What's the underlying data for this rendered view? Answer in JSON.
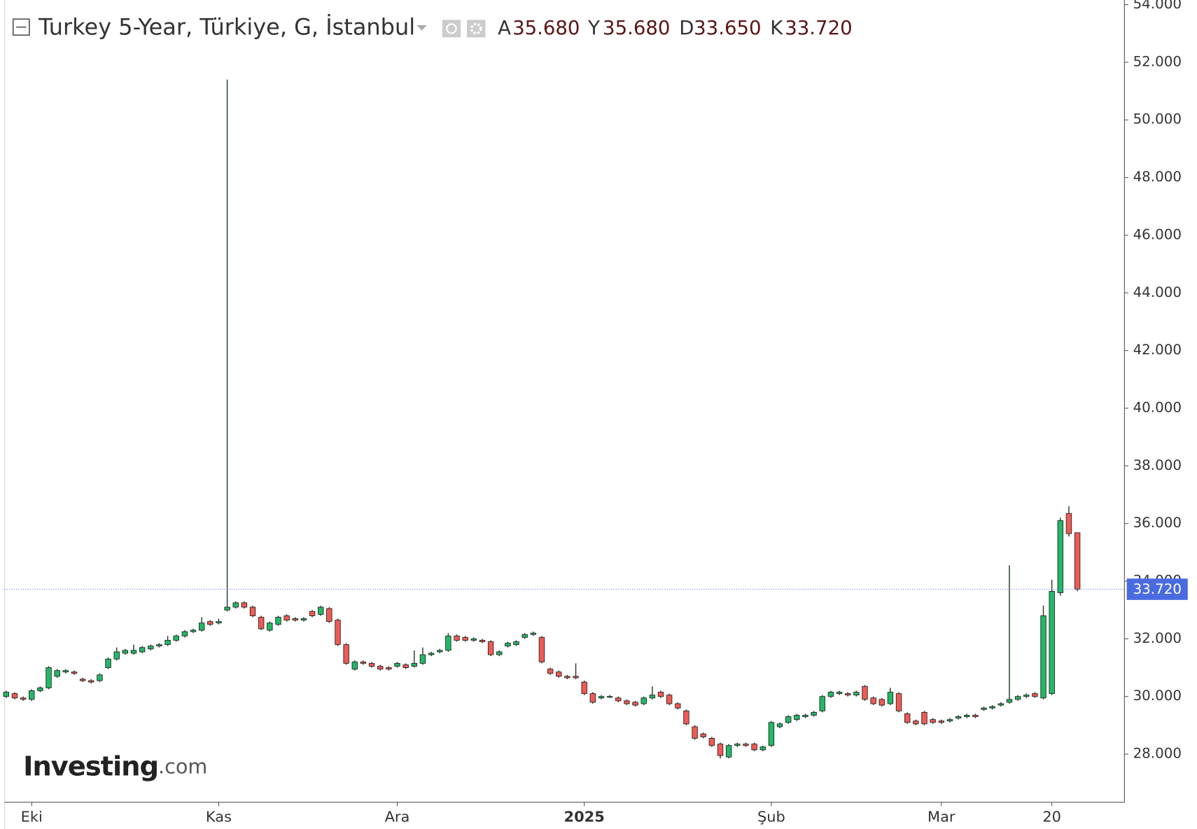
{
  "header": {
    "title": "Turkey 5-Year, Türkiye, G, İstanbul",
    "ohlc": [
      {
        "letter": "A",
        "value": "35.680"
      },
      {
        "letter": "Y",
        "value": "35.680"
      },
      {
        "letter": "D",
        "value": "33.650"
      },
      {
        "letter": "K",
        "value": "33.720"
      }
    ]
  },
  "logo": {
    "main": "Investing",
    "suffix": ".com"
  },
  "chart_data": {
    "type": "candlestick",
    "categories": [
      null,
      null,
      null,
      "Eki",
      null,
      null,
      null,
      null,
      null,
      null,
      null,
      null,
      null,
      null,
      null,
      null,
      null,
      null,
      null,
      null,
      null,
      null,
      null,
      null,
      null,
      "Kas",
      null,
      null,
      null,
      null,
      null,
      null,
      null,
      null,
      null,
      null,
      null,
      null,
      null,
      null,
      null,
      null,
      null,
      null,
      null,
      null,
      "Ara",
      null,
      null,
      null,
      null,
      null,
      null,
      null,
      null,
      null,
      null,
      null,
      null,
      null,
      null,
      null,
      null,
      null,
      null,
      null,
      null,
      null,
      "2025",
      null,
      null,
      null,
      null,
      null,
      null,
      null,
      null,
      null,
      null,
      null,
      null,
      null,
      null,
      null,
      null,
      null,
      null,
      null,
      null,
      null,
      "Şub",
      null,
      null,
      null,
      null,
      null,
      null,
      null,
      null,
      null,
      null,
      null,
      null,
      null,
      null,
      null,
      null,
      null,
      null,
      null,
      "Mar",
      null,
      null,
      null,
      null,
      null,
      null,
      null,
      null,
      null,
      null,
      null,
      null,
      "20",
      null,
      null,
      null
    ],
    "open": [
      30.0,
      30.1,
      29.95,
      29.9,
      30.2,
      30.3,
      30.7,
      30.85,
      30.85,
      30.6,
      30.55,
      30.55,
      31.0,
      31.3,
      31.5,
      31.5,
      31.55,
      31.65,
      31.75,
      31.8,
      31.95,
      32.1,
      32.25,
      32.3,
      32.6,
      32.55,
      33.0,
      33.1,
      33.25,
      33.1,
      32.75,
      32.3,
      32.5,
      32.8,
      32.7,
      32.65,
      32.95,
      32.85,
      33.05,
      32.65,
      31.8,
      30.95,
      31.2,
      31.15,
      31.05,
      31.0,
      31.05,
      31.1,
      31.05,
      31.15,
      31.45,
      31.55,
      31.6,
      32.1,
      32.05,
      31.95,
      31.95,
      31.9,
      31.45,
      31.75,
      31.8,
      32.05,
      32.15,
      32.05,
      30.95,
      30.85,
      30.7,
      30.7,
      30.5,
      30.1,
      29.95,
      30.0,
      29.95,
      29.85,
      29.8,
      29.75,
      29.95,
      30.15,
      30.05,
      29.75,
      29.5,
      28.95,
      28.7,
      28.55,
      28.35,
      27.9,
      28.3,
      28.35,
      28.35,
      28.15,
      28.3,
      28.95,
      29.1,
      29.2,
      29.3,
      29.35,
      29.5,
      30.0,
      30.1,
      30.1,
      30.05,
      30.35,
      29.95,
      29.9,
      29.75,
      30.1,
      29.4,
      29.15,
      29.45,
      29.2,
      29.15,
      29.15,
      29.25,
      29.3,
      29.35,
      29.55,
      29.6,
      29.7,
      29.8,
      29.9,
      30.0,
      30.1,
      29.95,
      30.1,
      33.6,
      36.35,
      35.68
    ],
    "high": [
      30.2,
      30.15,
      30.0,
      30.25,
      30.35,
      31.05,
      30.95,
      30.95,
      30.9,
      30.65,
      30.6,
      30.8,
      31.35,
      31.7,
      31.65,
      31.8,
      31.75,
      31.8,
      31.85,
      32.1,
      32.15,
      32.3,
      32.35,
      32.75,
      32.65,
      32.7,
      51.4,
      33.3,
      33.3,
      33.15,
      32.8,
      32.6,
      32.8,
      32.85,
      32.75,
      32.75,
      33.0,
      33.15,
      33.1,
      32.7,
      31.85,
      31.25,
      31.25,
      31.2,
      31.1,
      31.05,
      31.2,
      31.15,
      31.6,
      31.7,
      31.55,
      31.65,
      32.2,
      32.15,
      32.1,
      32.05,
      32.0,
      31.95,
      31.6,
      31.9,
      31.95,
      32.2,
      32.25,
      32.1,
      31.0,
      30.9,
      30.75,
      31.15,
      30.55,
      30.15,
      30.05,
      30.05,
      30.0,
      29.9,
      29.85,
      30.0,
      30.35,
      30.2,
      30.1,
      29.8,
      29.55,
      29.0,
      28.75,
      28.6,
      28.4,
      28.35,
      28.4,
      28.4,
      28.4,
      28.3,
      29.15,
      29.1,
      29.35,
      29.4,
      29.4,
      29.5,
      30.05,
      30.2,
      30.2,
      30.15,
      30.2,
      30.4,
      30.0,
      29.95,
      30.3,
      30.15,
      29.45,
      29.2,
      29.5,
      29.25,
      29.2,
      29.25,
      29.35,
      29.4,
      29.4,
      29.65,
      29.7,
      29.8,
      34.55,
      30.05,
      30.1,
      30.15,
      33.15,
      34.05,
      36.2,
      36.6,
      35.68
    ],
    "low": [
      29.95,
      29.9,
      29.85,
      29.85,
      30.15,
      30.25,
      30.65,
      30.8,
      30.75,
      30.5,
      30.45,
      30.5,
      30.95,
      31.25,
      31.45,
      31.45,
      31.5,
      31.6,
      31.7,
      31.75,
      31.9,
      32.05,
      32.2,
      32.25,
      32.45,
      32.5,
      32.95,
      33.05,
      33.05,
      32.75,
      32.3,
      32.25,
      32.45,
      32.6,
      32.6,
      32.6,
      32.75,
      32.8,
      32.55,
      31.75,
      31.1,
      30.9,
      31.1,
      31.0,
      30.9,
      30.9,
      31.0,
      30.95,
      31.0,
      31.1,
      31.4,
      31.5,
      31.55,
      31.9,
      31.9,
      31.9,
      31.85,
      31.4,
      31.4,
      31.7,
      31.75,
      32.0,
      32.1,
      31.15,
      30.75,
      30.65,
      30.6,
      30.6,
      30.05,
      29.75,
      29.9,
      29.95,
      29.8,
      29.7,
      29.65,
      29.7,
      29.9,
      29.95,
      29.7,
      29.55,
      29.0,
      28.5,
      28.55,
      28.25,
      27.85,
      27.85,
      28.25,
      28.25,
      28.1,
      28.1,
      28.25,
      28.9,
      29.05,
      29.15,
      29.25,
      29.3,
      29.45,
      29.95,
      30.05,
      30.0,
      30.0,
      29.85,
      29.7,
      29.65,
      29.7,
      29.45,
      29.05,
      29.0,
      29.0,
      29.05,
      29.05,
      29.1,
      29.2,
      29.25,
      29.25,
      29.5,
      29.55,
      29.65,
      29.75,
      29.85,
      29.95,
      29.95,
      29.9,
      30.05,
      33.5,
      35.55,
      33.65
    ],
    "close": [
      30.15,
      29.95,
      29.9,
      30.2,
      30.3,
      31.0,
      30.9,
      30.9,
      30.8,
      30.55,
      30.5,
      30.75,
      31.3,
      31.55,
      31.6,
      31.6,
      31.7,
      31.75,
      31.8,
      31.95,
      32.1,
      32.25,
      32.3,
      32.55,
      32.5,
      32.6,
      33.1,
      33.25,
      33.1,
      32.8,
      32.35,
      32.55,
      32.75,
      32.65,
      32.65,
      32.7,
      32.8,
      33.1,
      32.6,
      31.8,
      31.15,
      31.2,
      31.15,
      31.05,
      30.95,
      30.95,
      31.15,
      31.0,
      31.15,
      31.45,
      31.5,
      31.6,
      32.1,
      31.95,
      31.95,
      32.0,
      31.9,
      31.45,
      31.55,
      31.85,
      31.9,
      32.15,
      32.2,
      31.2,
      30.8,
      30.7,
      30.65,
      30.65,
      30.1,
      29.8,
      30.0,
      30.0,
      29.85,
      29.75,
      29.7,
      29.95,
      30.05,
      30.0,
      29.75,
      29.6,
      29.05,
      28.55,
      28.6,
      28.3,
      27.95,
      28.3,
      28.35,
      28.3,
      28.15,
      28.25,
      29.1,
      29.05,
      29.3,
      29.35,
      29.35,
      29.45,
      30.0,
      30.15,
      30.15,
      30.05,
      30.15,
      29.9,
      29.75,
      29.7,
      30.15,
      29.5,
      29.1,
      29.05,
      29.05,
      29.1,
      29.1,
      29.2,
      29.3,
      29.35,
      29.3,
      29.6,
      29.65,
      29.75,
      29.9,
      30.0,
      30.05,
      30.0,
      32.8,
      33.65,
      36.1,
      35.65,
      33.72
    ],
    "up_color": "#22b866",
    "down_color": "#f05a55",
    "wick_color": "#1f3d24",
    "ylim": [
      26.33,
      54.16
    ],
    "yticks": [
      {
        "value": 28,
        "label": "28.000"
      },
      {
        "value": 30,
        "label": "30.000"
      },
      {
        "value": 32,
        "label": "32.000"
      },
      {
        "value": 34,
        "label": "34.000"
      },
      {
        "value": 36,
        "label": "36.000"
      },
      {
        "value": 38,
        "label": "38.000"
      },
      {
        "value": 40,
        "label": "40.000"
      },
      {
        "value": 42,
        "label": "42.000"
      },
      {
        "value": 44,
        "label": "44.000"
      },
      {
        "value": 46,
        "label": "46.000"
      },
      {
        "value": 48,
        "label": "48.000"
      },
      {
        "value": 50,
        "label": "50.000"
      },
      {
        "value": 52,
        "label": "52.000"
      },
      {
        "value": 54,
        "label": "54.000"
      }
    ],
    "last_price": {
      "value": 33.72,
      "label": "33.720"
    },
    "grid": false
  }
}
